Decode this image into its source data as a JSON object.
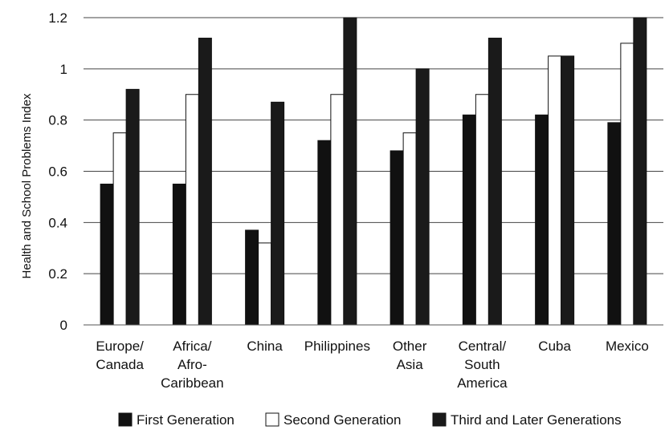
{
  "chart_data": {
    "type": "bar",
    "ylabel": "Health and School Problems Index",
    "ylim": [
      0,
      1.2
    ],
    "yticks": [
      "0",
      "0.2",
      "0.4",
      "0.6",
      "0.8",
      "1",
      "1.2"
    ],
    "grid": true,
    "legend_position": "bottom",
    "categories": [
      [
        "Europe/",
        "Canada"
      ],
      [
        "Africa/",
        "Afro-",
        "Caribbean"
      ],
      [
        "China"
      ],
      [
        "Philippines"
      ],
      [
        "Other",
        "Asia"
      ],
      [
        "Central/",
        "South",
        "America"
      ],
      [
        "Cuba"
      ],
      [
        "Mexico"
      ]
    ],
    "series": [
      {
        "name": "First Generation",
        "color": "#111111",
        "values": [
          0.55,
          0.55,
          0.37,
          0.72,
          0.68,
          0.82,
          0.82,
          0.79
        ]
      },
      {
        "name": "Second Generation",
        "color": "#ffffff",
        "values": [
          0.75,
          0.9,
          0.32,
          0.9,
          0.75,
          0.9,
          1.05,
          1.1
        ]
      },
      {
        "name": "Third and Later Generations",
        "color": "#1a1a1a",
        "values": [
          0.92,
          1.12,
          0.87,
          1.2,
          1.0,
          1.12,
          1.05,
          1.2
        ]
      }
    ]
  }
}
